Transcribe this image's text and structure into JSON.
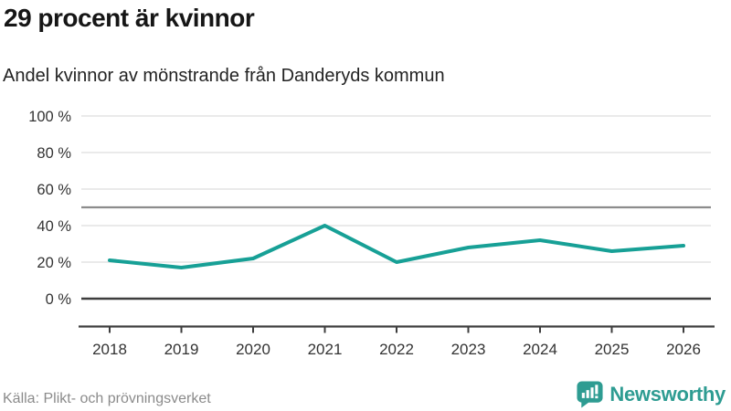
{
  "header": {
    "title": "29 procent är kvinnor",
    "subtitle": "Andel kvinnor av mönstrande från Danderyds kommun"
  },
  "footer": {
    "source": "Källa: Plikt- och prövningsverket",
    "brand_name": "Newsworthy",
    "brand_icon": "bar-chart-speech-bubble-icon"
  },
  "colors": {
    "line": "#17a096",
    "brand": "#2e9c92",
    "grid": "#e4e4e4",
    "reference_line": "#8c8c8c",
    "axis": "#3d3d3d",
    "tick_text": "#333333",
    "muted_text": "#8b8b8b"
  },
  "chart_data": {
    "type": "line",
    "title": "29 procent är kvinnor",
    "subtitle": "Andel kvinnor av mönstrande från Danderyds kommun",
    "x": [
      2018,
      2019,
      2020,
      2021,
      2022,
      2023,
      2024,
      2025,
      2026
    ],
    "series": [
      {
        "name": "Andel kvinnor av mönstrande, Danderyds kommun",
        "values": [
          21,
          17,
          22,
          40,
          20,
          28,
          32,
          26,
          29
        ]
      }
    ],
    "unit": "%",
    "ylim": [
      0,
      100
    ],
    "yticks": [
      0,
      20,
      40,
      60,
      80,
      100
    ],
    "ytick_labels": [
      "0 %",
      "20 %",
      "40 %",
      "60 %",
      "80 %",
      "100 %"
    ],
    "xtick_labels": [
      "2018",
      "2019",
      "2020",
      "2021",
      "2022",
      "2023",
      "2024",
      "2025",
      "2026"
    ],
    "reference_line": 50,
    "grid": true,
    "legend": false,
    "source": "Källa: Plikt- och prövningsverket"
  }
}
